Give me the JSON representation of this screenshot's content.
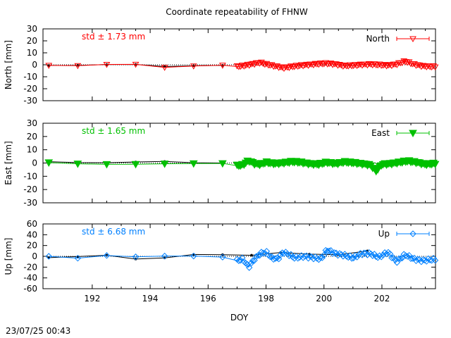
{
  "title": "Coordinate repeatability of FHNW",
  "timestamp": "23/07/25 00:43",
  "colors": {
    "north": "#ff0000",
    "east": "#00c000",
    "up": "#0080ff",
    "ref": "#000000"
  },
  "chart_data": [
    {
      "type": "line",
      "ylabel": "North [mm]",
      "stat": "std ± 1.73 mm",
      "legend": "North",
      "legend_position": "top-right",
      "marker": "triangle-down-open",
      "xlim": [
        190.3,
        203.85
      ],
      "ylim": [
        -30,
        30
      ],
      "yticks": [
        -30,
        -20,
        -10,
        0,
        10,
        20,
        30
      ],
      "x_dense": [
        197.0,
        203.85
      ],
      "series": [
        {
          "name": "North",
          "x": [
            190.5,
            191.5,
            192.5,
            193.5,
            194.5,
            195.5,
            196.5,
            197.0,
            197.2,
            197.5,
            197.8,
            198.0,
            198.3,
            198.6,
            198.9,
            199.2,
            199.5,
            199.8,
            200.1,
            200.4,
            200.7,
            201.0,
            201.3,
            201.6,
            201.9,
            202.2,
            202.5,
            202.8,
            203.1,
            203.4,
            203.7
          ],
          "y": [
            -0.5,
            -0.7,
            0.3,
            0.4,
            -2.2,
            -1.0,
            -0.4,
            -1.5,
            -0.8,
            0.5,
            2.0,
            0.5,
            -1.0,
            -2.5,
            -1.5,
            -0.5,
            0.2,
            0.8,
            1.2,
            0.5,
            -0.8,
            -0.5,
            0.2,
            0.5,
            0.0,
            -0.5,
            0.5,
            3.0,
            0.5,
            -1.0,
            -1.5
          ]
        },
        {
          "name": "reference",
          "x": [
            190.5,
            191.5,
            192.5,
            193.5,
            194.5,
            195.5,
            196.5
          ],
          "y": [
            -0.6,
            -0.5,
            0.2,
            0.3,
            -1.5,
            -0.8,
            -0.5
          ]
        }
      ]
    },
    {
      "type": "line",
      "ylabel": "East [mm]",
      "stat": "std ± 1.65 mm",
      "legend": "East",
      "legend_position": "top-right",
      "marker": "triangle-down-filled",
      "xlim": [
        190.3,
        203.85
      ],
      "ylim": [
        -30,
        30
      ],
      "yticks": [
        -30,
        -20,
        -10,
        0,
        10,
        20,
        30
      ],
      "x_dense": [
        197.0,
        203.85
      ],
      "series": [
        {
          "name": "East",
          "x": [
            190.5,
            191.5,
            192.5,
            193.5,
            194.5,
            195.5,
            196.5,
            197.0,
            197.2,
            197.4,
            197.6,
            197.8,
            198.0,
            198.3,
            198.6,
            198.9,
            199.2,
            199.5,
            199.8,
            200.1,
            200.4,
            200.7,
            201.0,
            201.3,
            201.6,
            201.8,
            202.0,
            202.3,
            202.6,
            202.9,
            203.2,
            203.5,
            203.8
          ],
          "y": [
            0.3,
            -0.6,
            -1.0,
            -0.9,
            -0.6,
            -0.4,
            -0.3,
            -2.0,
            -1.5,
            1.8,
            -0.5,
            -1.0,
            0.5,
            -0.5,
            0.2,
            1.0,
            0.5,
            -0.5,
            -1.0,
            0.5,
            -0.5,
            0.8,
            0.2,
            -0.5,
            -1.5,
            -6.0,
            -1.0,
            -0.5,
            0.5,
            1.5,
            0.5,
            -1.0,
            -0.5
          ]
        },
        {
          "name": "reference",
          "x": [
            190.5,
            191.5,
            192.5,
            193.5,
            194.5,
            195.5,
            196.5
          ],
          "y": [
            1.0,
            0.3,
            0.2,
            0.8,
            1.2,
            0.2,
            0.0
          ]
        }
      ]
    },
    {
      "type": "line",
      "ylabel": "Up [mm]",
      "stat": "std ± 6.68 mm",
      "legend": "Up",
      "legend_position": "top-right",
      "marker": "diamond-open",
      "xlim": [
        190.3,
        203.85
      ],
      "ylim": [
        -60,
        60
      ],
      "yticks": [
        -60,
        -40,
        -20,
        0,
        20,
        40,
        60
      ],
      "xticks": [
        192,
        194,
        196,
        198,
        200,
        202
      ],
      "xlabel": "DOY",
      "x_dense": [
        197.0,
        203.85
      ],
      "series": [
        {
          "name": "Up",
          "x": [
            190.5,
            191.5,
            192.5,
            193.5,
            194.5,
            195.5,
            196.5,
            197.0,
            197.2,
            197.4,
            197.6,
            197.8,
            198.0,
            198.2,
            198.4,
            198.6,
            198.8,
            199.0,
            199.3,
            199.6,
            199.9,
            200.1,
            200.4,
            200.7,
            201.0,
            201.3,
            201.6,
            201.9,
            202.2,
            202.5,
            202.8,
            203.1,
            203.4,
            203.7
          ],
          "y": [
            0.0,
            -3.5,
            1.5,
            -1.0,
            0.5,
            0.5,
            -1.5,
            -8.0,
            -5.0,
            -20.0,
            -5.0,
            5.0,
            8.0,
            -3.0,
            -5.0,
            8.0,
            3.0,
            -3.0,
            0.0,
            -2.0,
            -5.0,
            12.0,
            5.0,
            2.0,
            -3.0,
            5.0,
            5.0,
            -2.0,
            8.0,
            -10.0,
            3.0,
            -5.0,
            -8.0,
            -6.0
          ]
        },
        {
          "name": "reference",
          "x": [
            190.5,
            191.5,
            192.5,
            193.5,
            194.5,
            195.5,
            196.5,
            197.5,
            198.5,
            199.5,
            200.5,
            201.5
          ],
          "y": [
            -2.5,
            -0.5,
            2.0,
            -5.0,
            -3.0,
            3.5,
            3.0,
            2.0,
            7.0,
            4.0,
            3.0,
            10.0
          ]
        }
      ]
    }
  ]
}
